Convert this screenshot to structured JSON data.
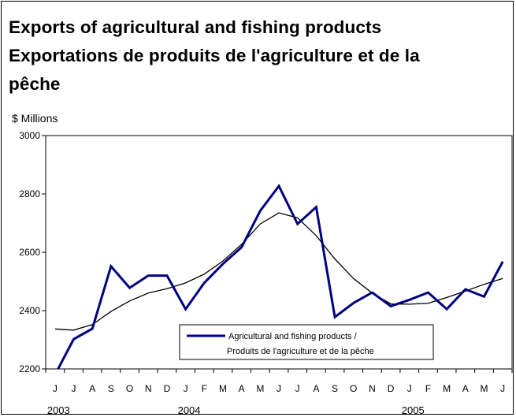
{
  "title_lines": [
    "Exports of agricultural and fishing products",
    "Exportations de produits de l'agriculture et de la",
    "pêche"
  ],
  "chart_data": {
    "type": "line",
    "ylabel": "$ Millions",
    "ylim": [
      2200,
      3000
    ],
    "yticks": [
      2200,
      2400,
      2600,
      2800,
      3000
    ],
    "x": [
      "J",
      "J",
      "A",
      "S",
      "O",
      "N",
      "D",
      "J",
      "F",
      "M",
      "A",
      "M",
      "J",
      "J",
      "A",
      "S",
      "O",
      "N",
      "D",
      "J",
      "F",
      "M",
      "A",
      "M",
      "J"
    ],
    "year_labels": [
      {
        "label": "2003",
        "index": 0
      },
      {
        "label": "2004",
        "index": 7
      },
      {
        "label": "2005",
        "index": 19
      }
    ],
    "series": [
      {
        "name": "Agricultural and fishing products / Produits de l'agriculture et de la pêche",
        "legend_lines": [
          "Agricultural and fishing products /",
          "Produits de l'agriculture et de la pêche"
        ],
        "color": "#000080",
        "values": [
          2180,
          2302,
          2338,
          2552,
          2478,
          2520,
          2520,
          2405,
          2495,
          2560,
          2617,
          2742,
          2827,
          2697,
          2755,
          2378,
          2426,
          2462,
          2415,
          2437,
          2462,
          2405,
          2473,
          2448,
          2568
        ]
      },
      {
        "name": "",
        "color": "#000000",
        "values": [
          2337,
          2333,
          2352,
          2397,
          2433,
          2460,
          2475,
          2495,
          2525,
          2570,
          2627,
          2697,
          2735,
          2718,
          2657,
          2577,
          2510,
          2460,
          2423,
          2422,
          2425,
          2445,
          2467,
          2490,
          2510
        ]
      }
    ]
  }
}
